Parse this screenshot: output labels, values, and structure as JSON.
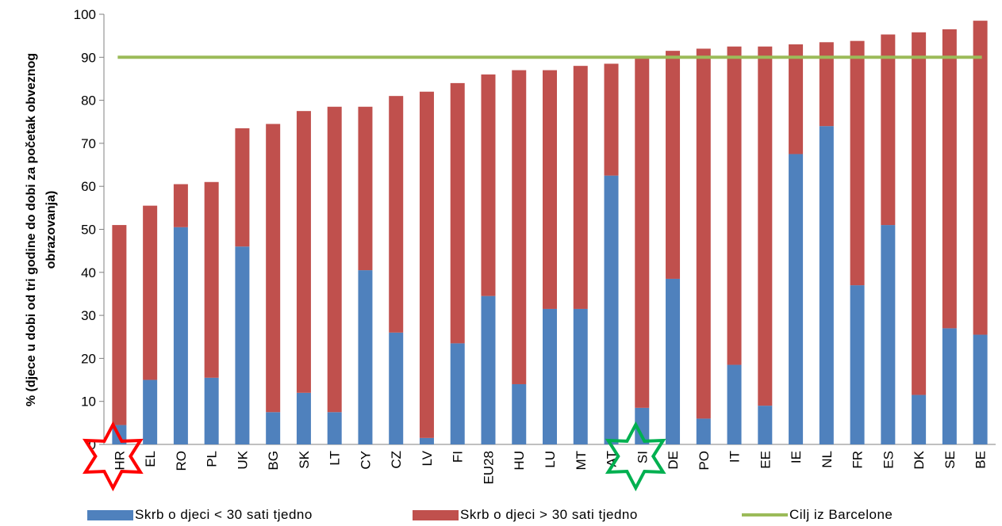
{
  "chart_data": {
    "type": "bar",
    "stacked": true,
    "ylabel_lines": [
      "% (djece u dobi od tri godine do dobi za početak obveznog",
      "obrazovanja)"
    ],
    "ylim": [
      0,
      100
    ],
    "yticks": [
      0,
      10,
      20,
      30,
      40,
      50,
      60,
      70,
      80,
      90,
      100
    ],
    "grid": false,
    "legend_position": "bottom",
    "categories": [
      "HR",
      "EL",
      "RO",
      "PL",
      "UK",
      "BG",
      "SK",
      "LT",
      "CY",
      "CZ",
      "LV",
      "FI",
      "EU28",
      "HU",
      "LU",
      "MT",
      "AT",
      "SI",
      "DE",
      "PO",
      "IT",
      "EE",
      "IE",
      "NL",
      "FR",
      "ES",
      "DK",
      "SE",
      "BE"
    ],
    "series": [
      {
        "name": "Skrb o djeci < 30 sati tjedno",
        "color": "#4F81BD",
        "values": [
          4.5,
          15,
          50.5,
          15.5,
          46,
          7.5,
          12,
          7.5,
          40.5,
          26,
          1.5,
          23.5,
          34.5,
          14,
          31.5,
          31.5,
          62.5,
          8.5,
          38.5,
          6,
          18.5,
          9,
          67.5,
          74,
          37,
          51,
          11.5,
          27,
          25.5
        ]
      },
      {
        "name": "Skrb o djeci > 30 sati tjedno",
        "color": "#C0504D",
        "values": [
          46.5,
          40.5,
          10,
          45.5,
          27.5,
          67,
          65.5,
          71,
          38,
          55,
          80.5,
          60.5,
          51.5,
          73,
          55.5,
          56.5,
          26,
          81.5,
          53,
          86,
          74,
          83.5,
          25.5,
          19.5,
          56.8,
          44.3,
          84.3,
          69.5,
          73
        ]
      }
    ],
    "reference_line": {
      "name": "Cilj iz Barcelone",
      "value": 90,
      "color": "#9BBB59"
    },
    "markers": [
      {
        "category": "HR",
        "shape": "star",
        "color": "#FF0000"
      },
      {
        "category": "SI",
        "shape": "star",
        "color": "#00B050"
      }
    ]
  },
  "legend": {
    "item1": "Skrb o djeci < 30 sati tjedno",
    "item2": "Skrb o djeci > 30 sati tjedno",
    "item3": "Cilj iz Barcelone"
  }
}
